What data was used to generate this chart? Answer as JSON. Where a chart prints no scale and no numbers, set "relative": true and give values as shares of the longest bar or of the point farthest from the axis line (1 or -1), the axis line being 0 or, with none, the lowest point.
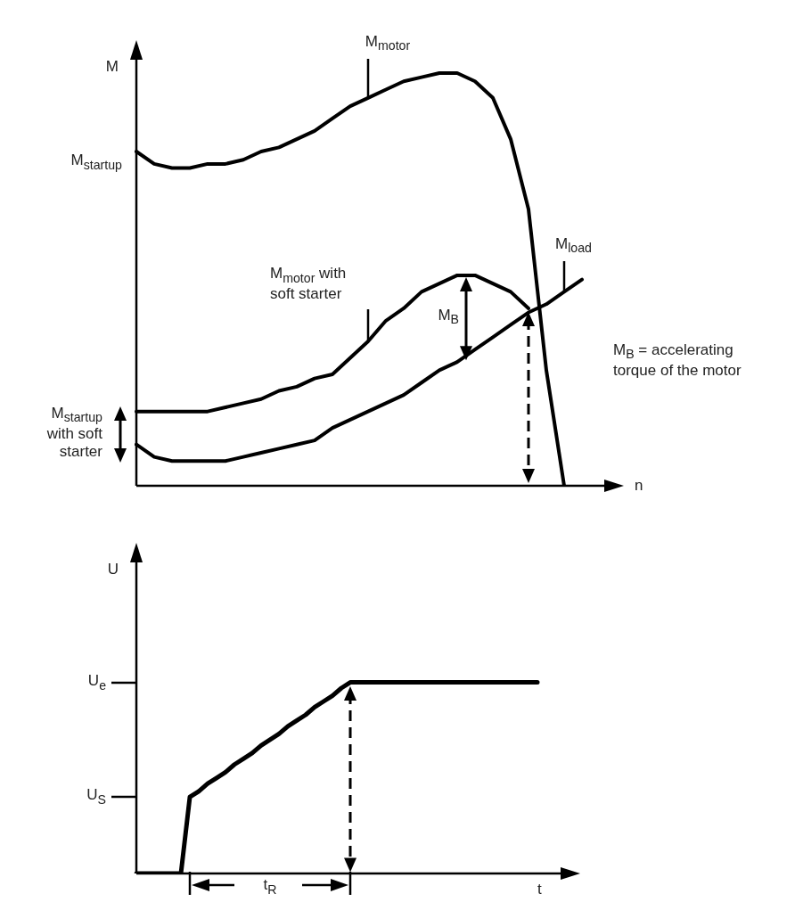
{
  "chart_data": [
    {
      "type": "line",
      "relative": true,
      "marker": "none",
      "xlabel": "n",
      "ylabel": "M",
      "categories": [
        null,
        null,
        null,
        null,
        null,
        null,
        null,
        null,
        null,
        null,
        null,
        null,
        null,
        null,
        null,
        null,
        null,
        null,
        null,
        null,
        null,
        null,
        null,
        null,
        null,
        null,
        null
      ],
      "series": [
        {
          "name": "M$_{motor}$",
          "color": "#000000",
          "values": [
            0.81,
            0.78,
            0.77,
            0.77,
            0.78,
            0.78,
            0.79,
            0.81,
            0.82,
            0.84,
            0.86,
            0.89,
            0.92,
            0.94,
            0.96,
            0.98,
            0.99,
            1.0,
            1.0,
            0.98,
            0.94,
            0.84,
            0.67,
            0.28,
            0,
            null,
            null
          ]
        },
        {
          "name": "M$_{motor}$ with soft starter",
          "color": "#000000",
          "values": [
            0.18,
            0.18,
            0.18,
            0.18,
            0.18,
            0.19,
            0.2,
            0.21,
            0.23,
            0.24,
            0.26,
            0.27,
            0.31,
            0.35,
            0.4,
            0.43,
            0.47,
            0.49,
            0.51,
            0.51,
            0.49,
            0.47,
            0.43,
            null,
            null,
            null,
            null
          ]
        },
        {
          "name": "M$_{load}$",
          "color": "#000000",
          "values": [
            0.1,
            0.07,
            0.06,
            0.06,
            0.06,
            0.06,
            0.07,
            0.08,
            0.09,
            0.1,
            0.11,
            0.14,
            0.16,
            0.18,
            0.2,
            0.22,
            0.25,
            0.28,
            0.3,
            0.33,
            0.36,
            0.39,
            0.42,
            0.44,
            0.47,
            0.5,
            null
          ]
        }
      ],
      "annotations": [
        "M$_{startup}$",
        "M$_{B}$",
        "M$_{B}$ = accelerating torque of the motor",
        "M$_{startup}$ with soft starter"
      ]
    },
    {
      "type": "line",
      "relative": true,
      "marker": "none",
      "xlabel": "t",
      "ylabel": "U",
      "categories": [
        null,
        null,
        null,
        null,
        null,
        null,
        null,
        null,
        null,
        null,
        null,
        null,
        null,
        null,
        null,
        null,
        null,
        null,
        null,
        null,
        null,
        null,
        null,
        null,
        null,
        null,
        null,
        null,
        null,
        null,
        null,
        null,
        null,
        null,
        null,
        null,
        null,
        null,
        null,
        null,
        null,
        null,
        null,
        null,
        null,
        null,
        null,
        null,
        null,
        null
      ],
      "series": [
        {
          "color": "#000000",
          "values": [
            0,
            0,
            0,
            0,
            0,
            0,
            0.4,
            0.43,
            0.47,
            0.5,
            0.53,
            0.57,
            0.6,
            0.63,
            0.67,
            0.7,
            0.73,
            0.77,
            0.8,
            0.83,
            0.87,
            0.9,
            0.93,
            0.97,
            1.0,
            1,
            1,
            1,
            1,
            1,
            1,
            1,
            1,
            1,
            1,
            1,
            1,
            1,
            1,
            1,
            1,
            1,
            1,
            1,
            1,
            1,
            null,
            null,
            null,
            null
          ]
        }
      ],
      "annotations": [
        "t$_{R}$",
        "U$_{e}$",
        "U$_{S}$"
      ]
    }
  ]
}
